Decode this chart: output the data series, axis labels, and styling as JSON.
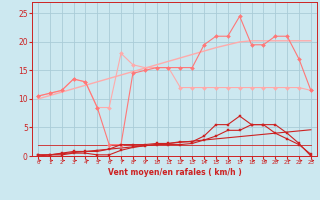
{
  "x": [
    0,
    1,
    2,
    3,
    4,
    5,
    6,
    7,
    8,
    9,
    10,
    11,
    12,
    13,
    14,
    15,
    16,
    17,
    18,
    19,
    20,
    21,
    22,
    23
  ],
  "bg_color": "#cce8f0",
  "grid_color": "#aaccd8",
  "pink_light": "#ffaaaa",
  "pink_mid": "#ff7777",
  "red_dark": "#cc2222",
  "xlabel": "Vent moyen/en rafales ( km/h )",
  "ylim": [
    0,
    27
  ],
  "xlim": [
    -0.5,
    23.5
  ],
  "yticks": [
    0,
    5,
    10,
    15,
    20,
    25
  ],
  "line_upper_zigzag_y": [
    10.5,
    11.0,
    11.5,
    13.5,
    13.0,
    8.5,
    8.5,
    18.0,
    16.0,
    15.5,
    15.5,
    15.5,
    12.0,
    12.0,
    12.0,
    12.0,
    12.0,
    12.0,
    12.0,
    12.0,
    12.0,
    12.0,
    12.0,
    11.5
  ],
  "line_upper_peak_y": [
    10.5,
    11.0,
    11.5,
    13.5,
    13.0,
    8.5,
    2.0,
    2.0,
    14.5,
    15.0,
    15.5,
    15.5,
    15.5,
    15.5,
    19.5,
    21.0,
    21.0,
    24.5,
    19.5,
    19.5,
    21.0,
    21.0,
    17.0,
    11.5
  ],
  "trend_upper_y": [
    10.0,
    10.6,
    11.2,
    11.8,
    12.4,
    13.0,
    13.6,
    14.2,
    14.8,
    15.4,
    16.0,
    16.6,
    17.2,
    17.8,
    18.4,
    19.0,
    19.5,
    20.0,
    20.2,
    20.2,
    20.2,
    20.2,
    20.2,
    20.2
  ],
  "line_lower_peak_y": [
    0.2,
    0.2,
    0.5,
    0.8,
    0.8,
    0.8,
    1.2,
    2.0,
    2.0,
    2.0,
    2.2,
    2.2,
    2.5,
    2.5,
    3.5,
    5.5,
    5.5,
    7.0,
    5.5,
    5.5,
    4.0,
    3.0,
    2.0,
    0.3
  ],
  "line_lower_base_y": [
    0.2,
    0.2,
    0.2,
    0.5,
    0.5,
    0.2,
    0.2,
    1.0,
    1.5,
    1.8,
    2.0,
    2.0,
    2.0,
    2.2,
    2.8,
    3.5,
    4.5,
    4.5,
    5.5,
    5.5,
    5.5,
    4.0,
    2.2,
    0.0
  ],
  "trend_lower_y": [
    0.0,
    0.2,
    0.4,
    0.6,
    0.8,
    1.0,
    1.2,
    1.4,
    1.6,
    1.8,
    2.0,
    2.2,
    2.4,
    2.6,
    2.8,
    3.0,
    3.2,
    3.4,
    3.6,
    3.8,
    4.0,
    4.2,
    4.4,
    4.6
  ],
  "flat_line_y": [
    2.0,
    2.0,
    2.0,
    2.0,
    2.0,
    2.0,
    2.0,
    2.0,
    2.0,
    2.0,
    2.0,
    2.0,
    2.0,
    2.0,
    2.0,
    2.0,
    2.0,
    2.0,
    2.0,
    2.0,
    2.0,
    2.0,
    2.0,
    2.0
  ]
}
